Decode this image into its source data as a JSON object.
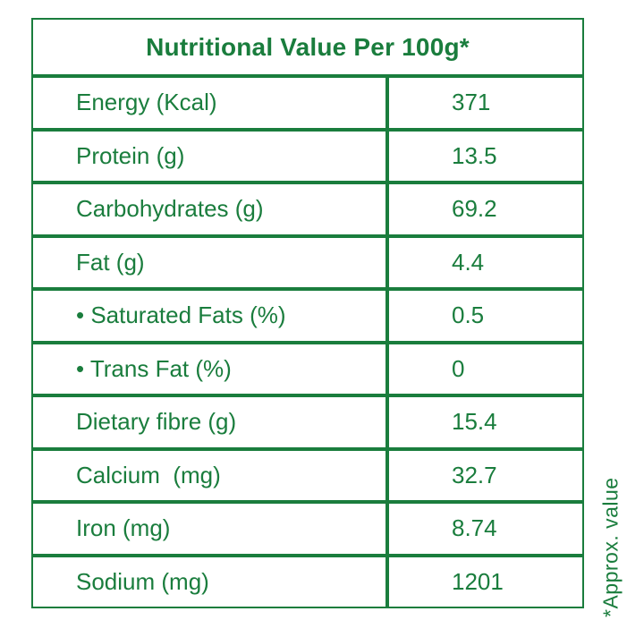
{
  "colors": {
    "green": "#1A7D3D",
    "background": "#FFFFFF"
  },
  "header": {
    "title": "Nutritional Value Per 100g*"
  },
  "footnote": "*Approx. value",
  "nutrition_table": {
    "rows": [
      {
        "label": "Energy (Kcal)",
        "value": "371"
      },
      {
        "label": "Protein (g)",
        "value": "13.5"
      },
      {
        "label": "Carbohydrates (g)",
        "value": "69.2"
      },
      {
        "label": "Fat (g)",
        "value": "4.4"
      },
      {
        "label": "• Saturated Fats (%)",
        "value": "0.5"
      },
      {
        "label": "• Trans Fat (%)",
        "value": "0"
      },
      {
        "label": "Dietary fibre (g)",
        "value": "15.4"
      },
      {
        "label": "Calcium  (mg)",
        "value": "32.7"
      },
      {
        "label": "Iron (mg)",
        "value": "8.74"
      },
      {
        "label": "Sodium (mg)",
        "value": "1201"
      }
    ]
  }
}
